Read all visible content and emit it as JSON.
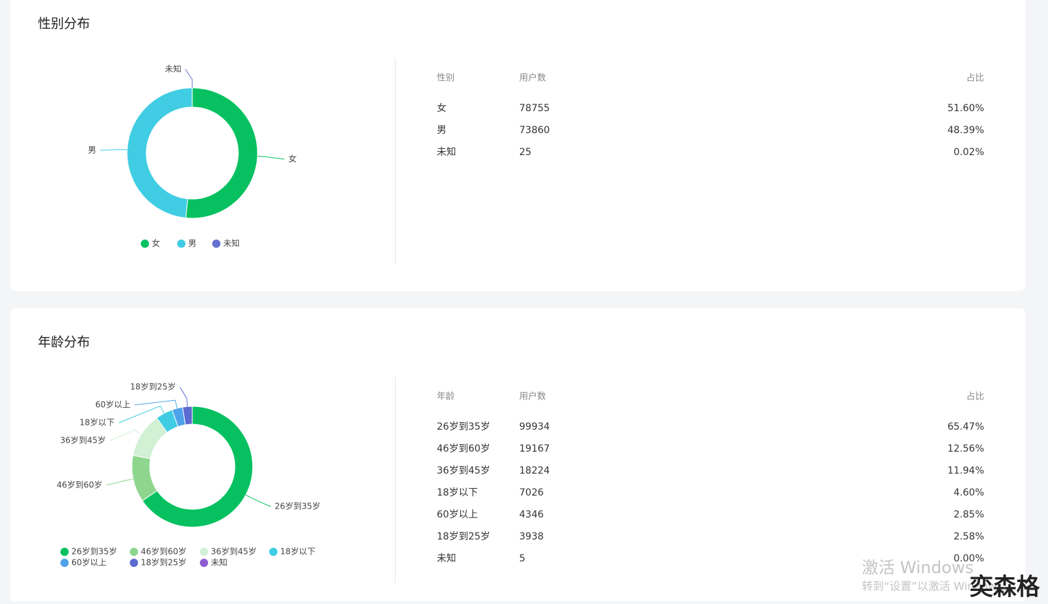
{
  "chart_data": [
    {
      "type": "pie",
      "title": "性别分布",
      "categories": [
        "女",
        "男",
        "未知"
      ],
      "values": [
        78755,
        73860,
        25
      ],
      "colors": [
        "#07c160",
        "#40cde3",
        "#6670d0"
      ]
    },
    {
      "type": "pie",
      "title": "年龄分布",
      "categories": [
        "26岁到35岁",
        "46岁到60岁",
        "36岁到45岁",
        "18岁以下",
        "60岁以上",
        "18岁到25岁",
        "未知"
      ],
      "values": [
        99934,
        19167,
        18224,
        7026,
        4346,
        3938,
        5
      ],
      "colors": [
        "#07c160",
        "#8ed68e",
        "#d1f0d4",
        "#40cde3",
        "#4ea3ea",
        "#5c6bd0",
        "#8e5dd4"
      ]
    }
  ],
  "tables": [
    {
      "headers": [
        "性别",
        "用户数",
        "占比"
      ],
      "shares": [
        "51.60%",
        "48.39%",
        "0.02%"
      ]
    },
    {
      "headers": [
        "年龄",
        "用户数",
        "占比"
      ],
      "shares": [
        "65.47%",
        "12.56%",
        "11.94%",
        "4.60%",
        "2.85%",
        "2.58%",
        "0.00%"
      ]
    }
  ],
  "watermark": {
    "title": "激活 Windows",
    "subtitle": "转到“设置”以激活 Windows。"
  },
  "logo": "奕森格"
}
